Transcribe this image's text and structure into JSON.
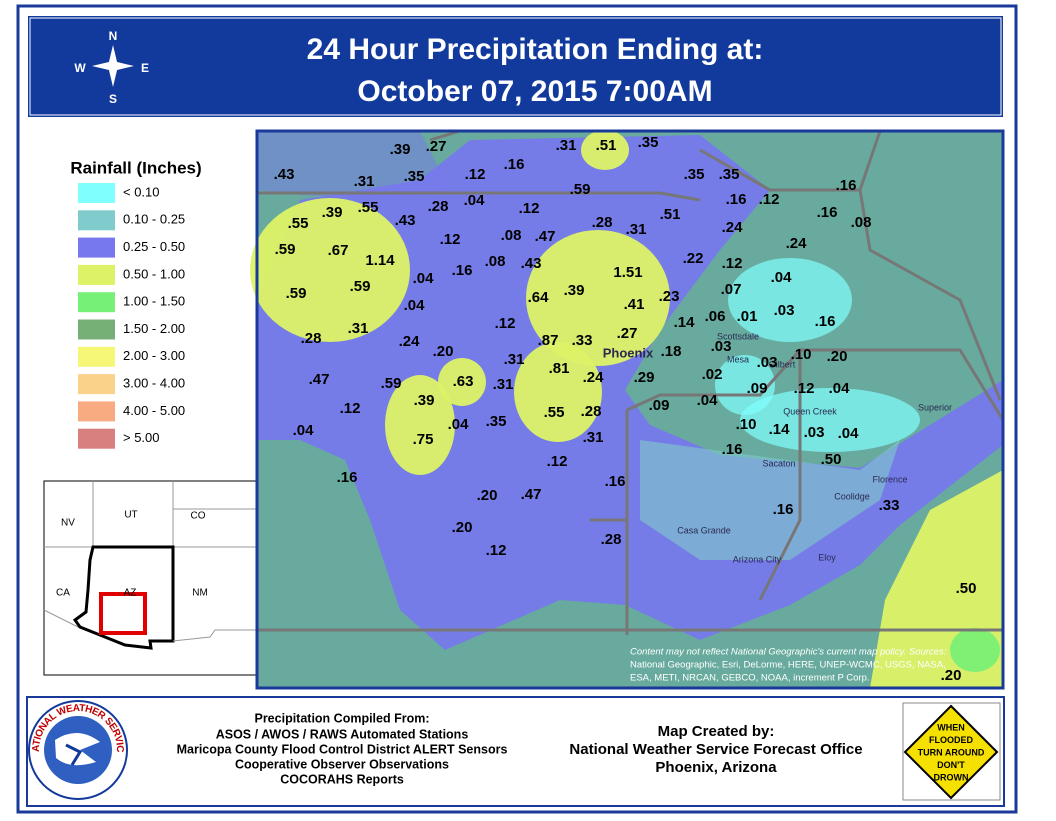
{
  "header": {
    "title_line1": "24 Hour Precipitation Ending at:",
    "title_line2": "October 07, 2015 7:00AM"
  },
  "compass": {
    "n": "N",
    "e": "E",
    "s": "S",
    "w": "W"
  },
  "legend": {
    "title": "Rainfall (Inches)",
    "items": [
      {
        "label": "< 0.10",
        "color": "#80ffff"
      },
      {
        "label": "0.10 - 0.25",
        "color": "#80cccc"
      },
      {
        "label": "0.25 - 0.50",
        "color": "#7777ee"
      },
      {
        "label": "0.50 - 1.00",
        "color": "#ddf266"
      },
      {
        "label": "1.00 - 1.50",
        "color": "#77f077"
      },
      {
        "label": "1.50 - 2.00",
        "color": "#77b077"
      },
      {
        "label": "2.00 - 3.00",
        "color": "#f6f677"
      },
      {
        "label": "3.00 - 4.00",
        "color": "#fbd28a"
      },
      {
        "label": "4.00 - 5.00",
        "color": "#f8aa80"
      },
      {
        "label": "> 5.00",
        "color": "#d88080"
      }
    ]
  },
  "inset": {
    "labels": [
      "NV",
      "UT",
      "CO",
      "CA",
      "AZ",
      "NM"
    ]
  },
  "map": {
    "stations": [
      ".39",
      ".27",
      ".31",
      ".51",
      ".35",
      ".43",
      ".31",
      ".35",
      ".12",
      ".16",
      ".35",
      ".35",
      ".16",
      ".59",
      ".55",
      ".39",
      ".55",
      ".43",
      ".28",
      ".04",
      ".12",
      ".28",
      ".31",
      ".51",
      ".16",
      ".12",
      ".16",
      ".08",
      ".24",
      ".24",
      ".59",
      ".67",
      ".12",
      ".08",
      ".47",
      "1.14",
      ".04",
      ".16",
      ".08",
      ".43",
      "1.51",
      ".22",
      ".12",
      ".04",
      ".59",
      ".59",
      ".64",
      ".39",
      ".23",
      ".07",
      ".04",
      ".41",
      ".06",
      ".01",
      ".03",
      ".16",
      ".12",
      ".14",
      ".28",
      ".31",
      ".24",
      ".87",
      ".33",
      ".27",
      ".20",
      ".31",
      ".18",
      ".03",
      ".03",
      ".10",
      ".20",
      ".81",
      ".24",
      ".29",
      ".02",
      ".47",
      ".59",
      ".63",
      ".31",
      ".09",
      ".12",
      ".04",
      ".39",
      ".04",
      ".09",
      ".12",
      ".55",
      ".28",
      ".04",
      ".04",
      ".35",
      ".10",
      ".14",
      ".03",
      ".04",
      ".75",
      ".31",
      ".16",
      ".50",
      ".12",
      ".16",
      ".16",
      ".20",
      ".47",
      ".33",
      ".16",
      ".20",
      ".28",
      ".12",
      ".50",
      ".20"
    ],
    "places": [
      "Phoenix",
      "Scottsdale",
      "Mesa",
      "Gilbert",
      "Queen Creek",
      "Superior",
      "Sacaton",
      "Florence",
      "Coolidge",
      "Casa Grande",
      "Arizona City",
      "Eloy"
    ],
    "credit": [
      "Content may not reflect National Geographic's current map policy. Sources:",
      "National Geographic, Esri, DeLorme, HERE, UNEP-WCMC, USGS, NASA,",
      "ESA, METI, NRCAN, GEBCO, NOAA, increment P Corp."
    ]
  },
  "footer": {
    "logo_text": "NATIONAL WEATHER SERVICE",
    "sources_title": "Precipitation Compiled From:",
    "sources": [
      "ASOS / AWOS / RAWS Automated Stations",
      "Maricopa County Flood Control District ALERT Sensors",
      "Cooperative Observer Observations",
      "COCORAHS Reports"
    ],
    "creator_title": "Map Created by:",
    "creator": [
      "National Weather Service Forecast Office",
      "Phoenix, Arizona"
    ],
    "sign": [
      "WHEN",
      "FLOODED",
      "TURN AROUND",
      "DON'T",
      "DROWN"
    ]
  }
}
